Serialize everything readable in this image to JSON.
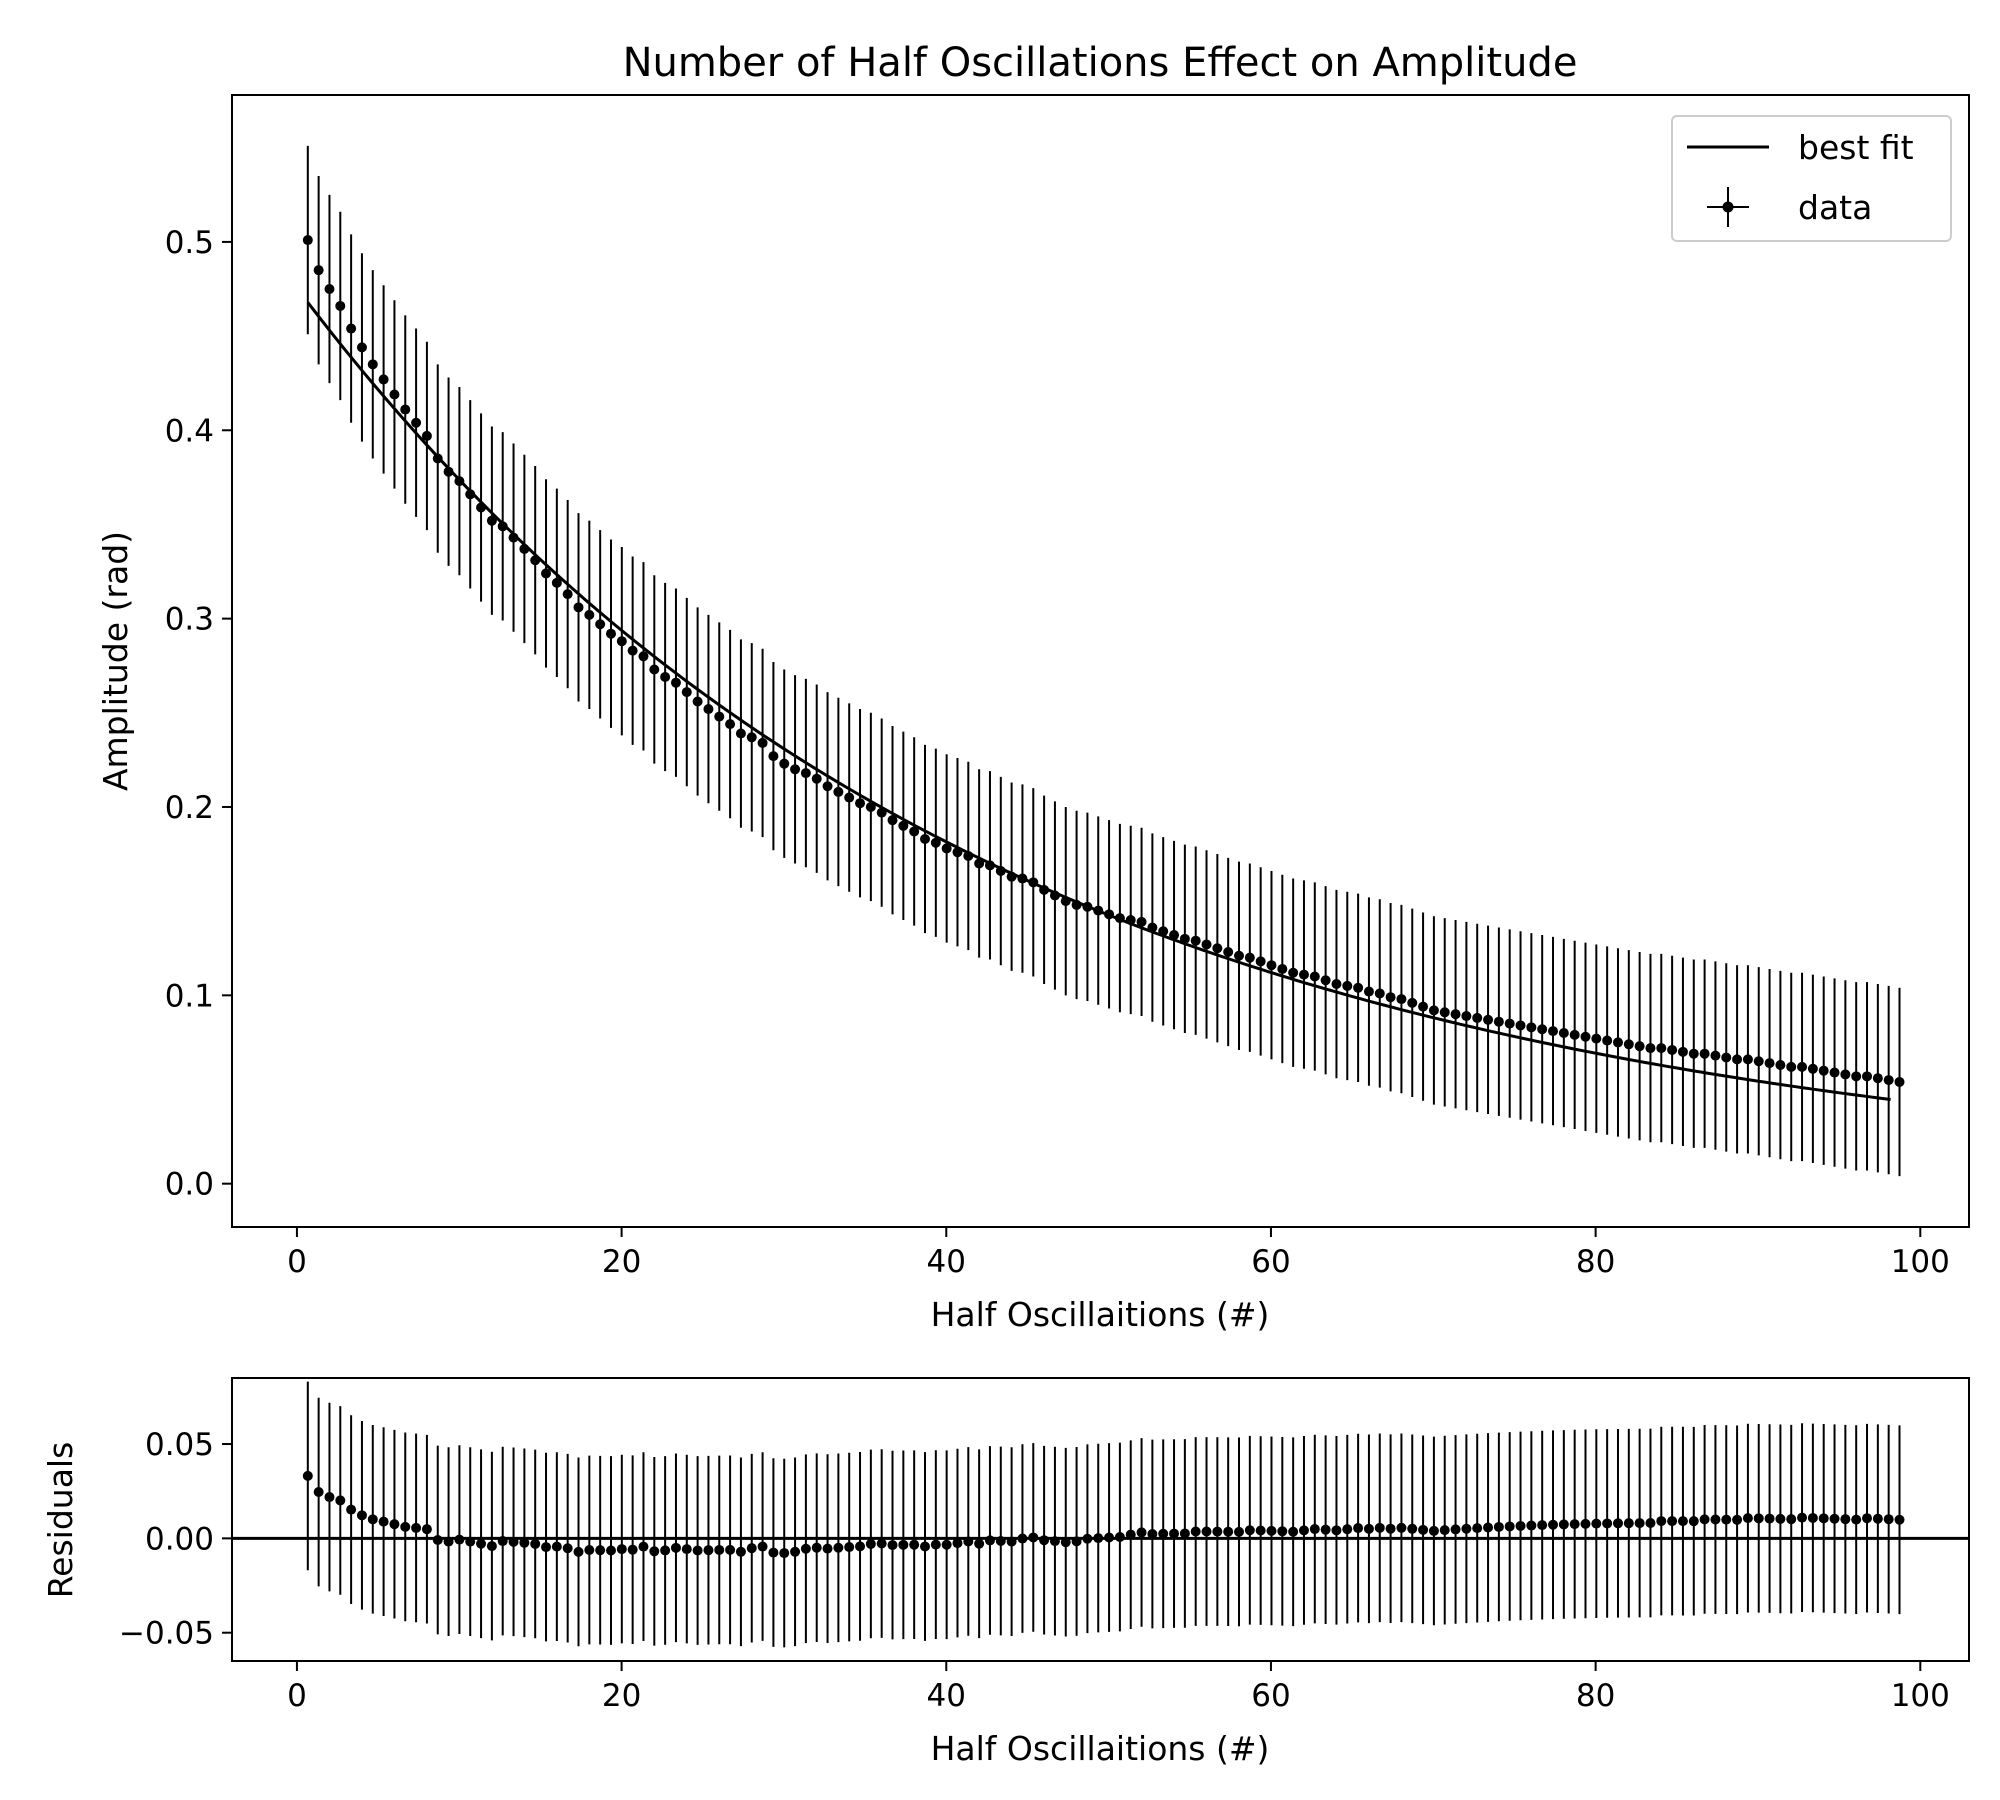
{
  "chart_data": [
    {
      "type": "scatter",
      "title": "Number of Half Oscillations Effect on Amplitude",
      "xlabel": "Half Oscillaitions (#)",
      "ylabel": "Amplitude (rad)",
      "xlim": [
        -4,
        103
      ],
      "ylim": [
        -0.023,
        0.578
      ],
      "xticks": [
        0,
        20,
        40,
        60,
        80,
        100
      ],
      "yticks": [
        0.0,
        0.1,
        0.2,
        0.3,
        0.4,
        0.5
      ],
      "ytick_labels": [
        "0.0",
        "0.1",
        "0.2",
        "0.3",
        "0.4",
        "0.5"
      ],
      "legend": {
        "position": "top-right",
        "entries": [
          "best fit",
          "data"
        ]
      },
      "series": [
        {
          "name": "best fit",
          "kind": "line",
          "model": "exponential decay",
          "amplitude": 0.4755,
          "decay_constant": 0.02408,
          "x_range": [
            0.67,
            98.17
          ]
        },
        {
          "name": "data",
          "kind": "errorbar",
          "x_start": 0.67,
          "x_step": 0.667,
          "y_error": 0.05,
          "values": [
            0.501,
            0.485,
            0.475,
            0.466,
            0.454,
            0.444,
            0.435,
            0.427,
            0.419,
            0.411,
            0.404,
            0.397,
            0.385,
            0.378,
            0.373,
            0.366,
            0.359,
            0.352,
            0.349,
            0.343,
            0.337,
            0.331,
            0.324,
            0.319,
            0.313,
            0.306,
            0.302,
            0.297,
            0.292,
            0.288,
            0.283,
            0.28,
            0.273,
            0.269,
            0.266,
            0.261,
            0.256,
            0.252,
            0.248,
            0.244,
            0.239,
            0.237,
            0.234,
            0.227,
            0.223,
            0.22,
            0.218,
            0.215,
            0.211,
            0.208,
            0.205,
            0.202,
            0.2,
            0.197,
            0.193,
            0.19,
            0.187,
            0.183,
            0.181,
            0.178,
            0.176,
            0.174,
            0.17,
            0.169,
            0.166,
            0.163,
            0.162,
            0.16,
            0.156,
            0.153,
            0.15,
            0.148,
            0.147,
            0.145,
            0.143,
            0.141,
            0.14,
            0.139,
            0.136,
            0.134,
            0.132,
            0.13,
            0.129,
            0.127,
            0.125,
            0.123,
            0.121,
            0.12,
            0.118,
            0.116,
            0.114,
            0.112,
            0.111,
            0.11,
            0.108,
            0.106,
            0.105,
            0.104,
            0.102,
            0.101,
            0.099,
            0.098,
            0.096,
            0.094,
            0.092,
            0.091,
            0.09,
            0.089,
            0.088,
            0.087,
            0.086,
            0.085,
            0.084,
            0.083,
            0.082,
            0.081,
            0.08,
            0.079,
            0.078,
            0.077,
            0.076,
            0.075,
            0.074,
            0.073,
            0.072,
            0.072,
            0.071,
            0.07,
            0.069,
            0.069,
            0.068,
            0.067,
            0.066,
            0.066,
            0.065,
            0.064,
            0.063,
            0.062,
            0.062,
            0.061,
            0.06,
            0.059,
            0.058,
            0.057,
            0.057,
            0.056,
            0.055,
            0.054
          ]
        }
      ]
    },
    {
      "type": "scatter",
      "title": "",
      "xlabel": "Half Oscillaitions (#)",
      "ylabel": "Residuals",
      "xlim": [
        -4,
        103
      ],
      "ylim": [
        -0.065,
        0.085
      ],
      "xticks": [
        0,
        20,
        40,
        60,
        80,
        100
      ],
      "yticks": [
        -0.05,
        0.0,
        0.05
      ],
      "ytick_labels": [
        "−0.05",
        "0.00",
        "0.05"
      ],
      "reference_line": 0,
      "series": [
        {
          "kind": "errorbar",
          "x_start": 0.67,
          "x_step": 0.667,
          "y_error": 0.05,
          "derived_from": "data minus best fit"
        }
      ]
    }
  ]
}
